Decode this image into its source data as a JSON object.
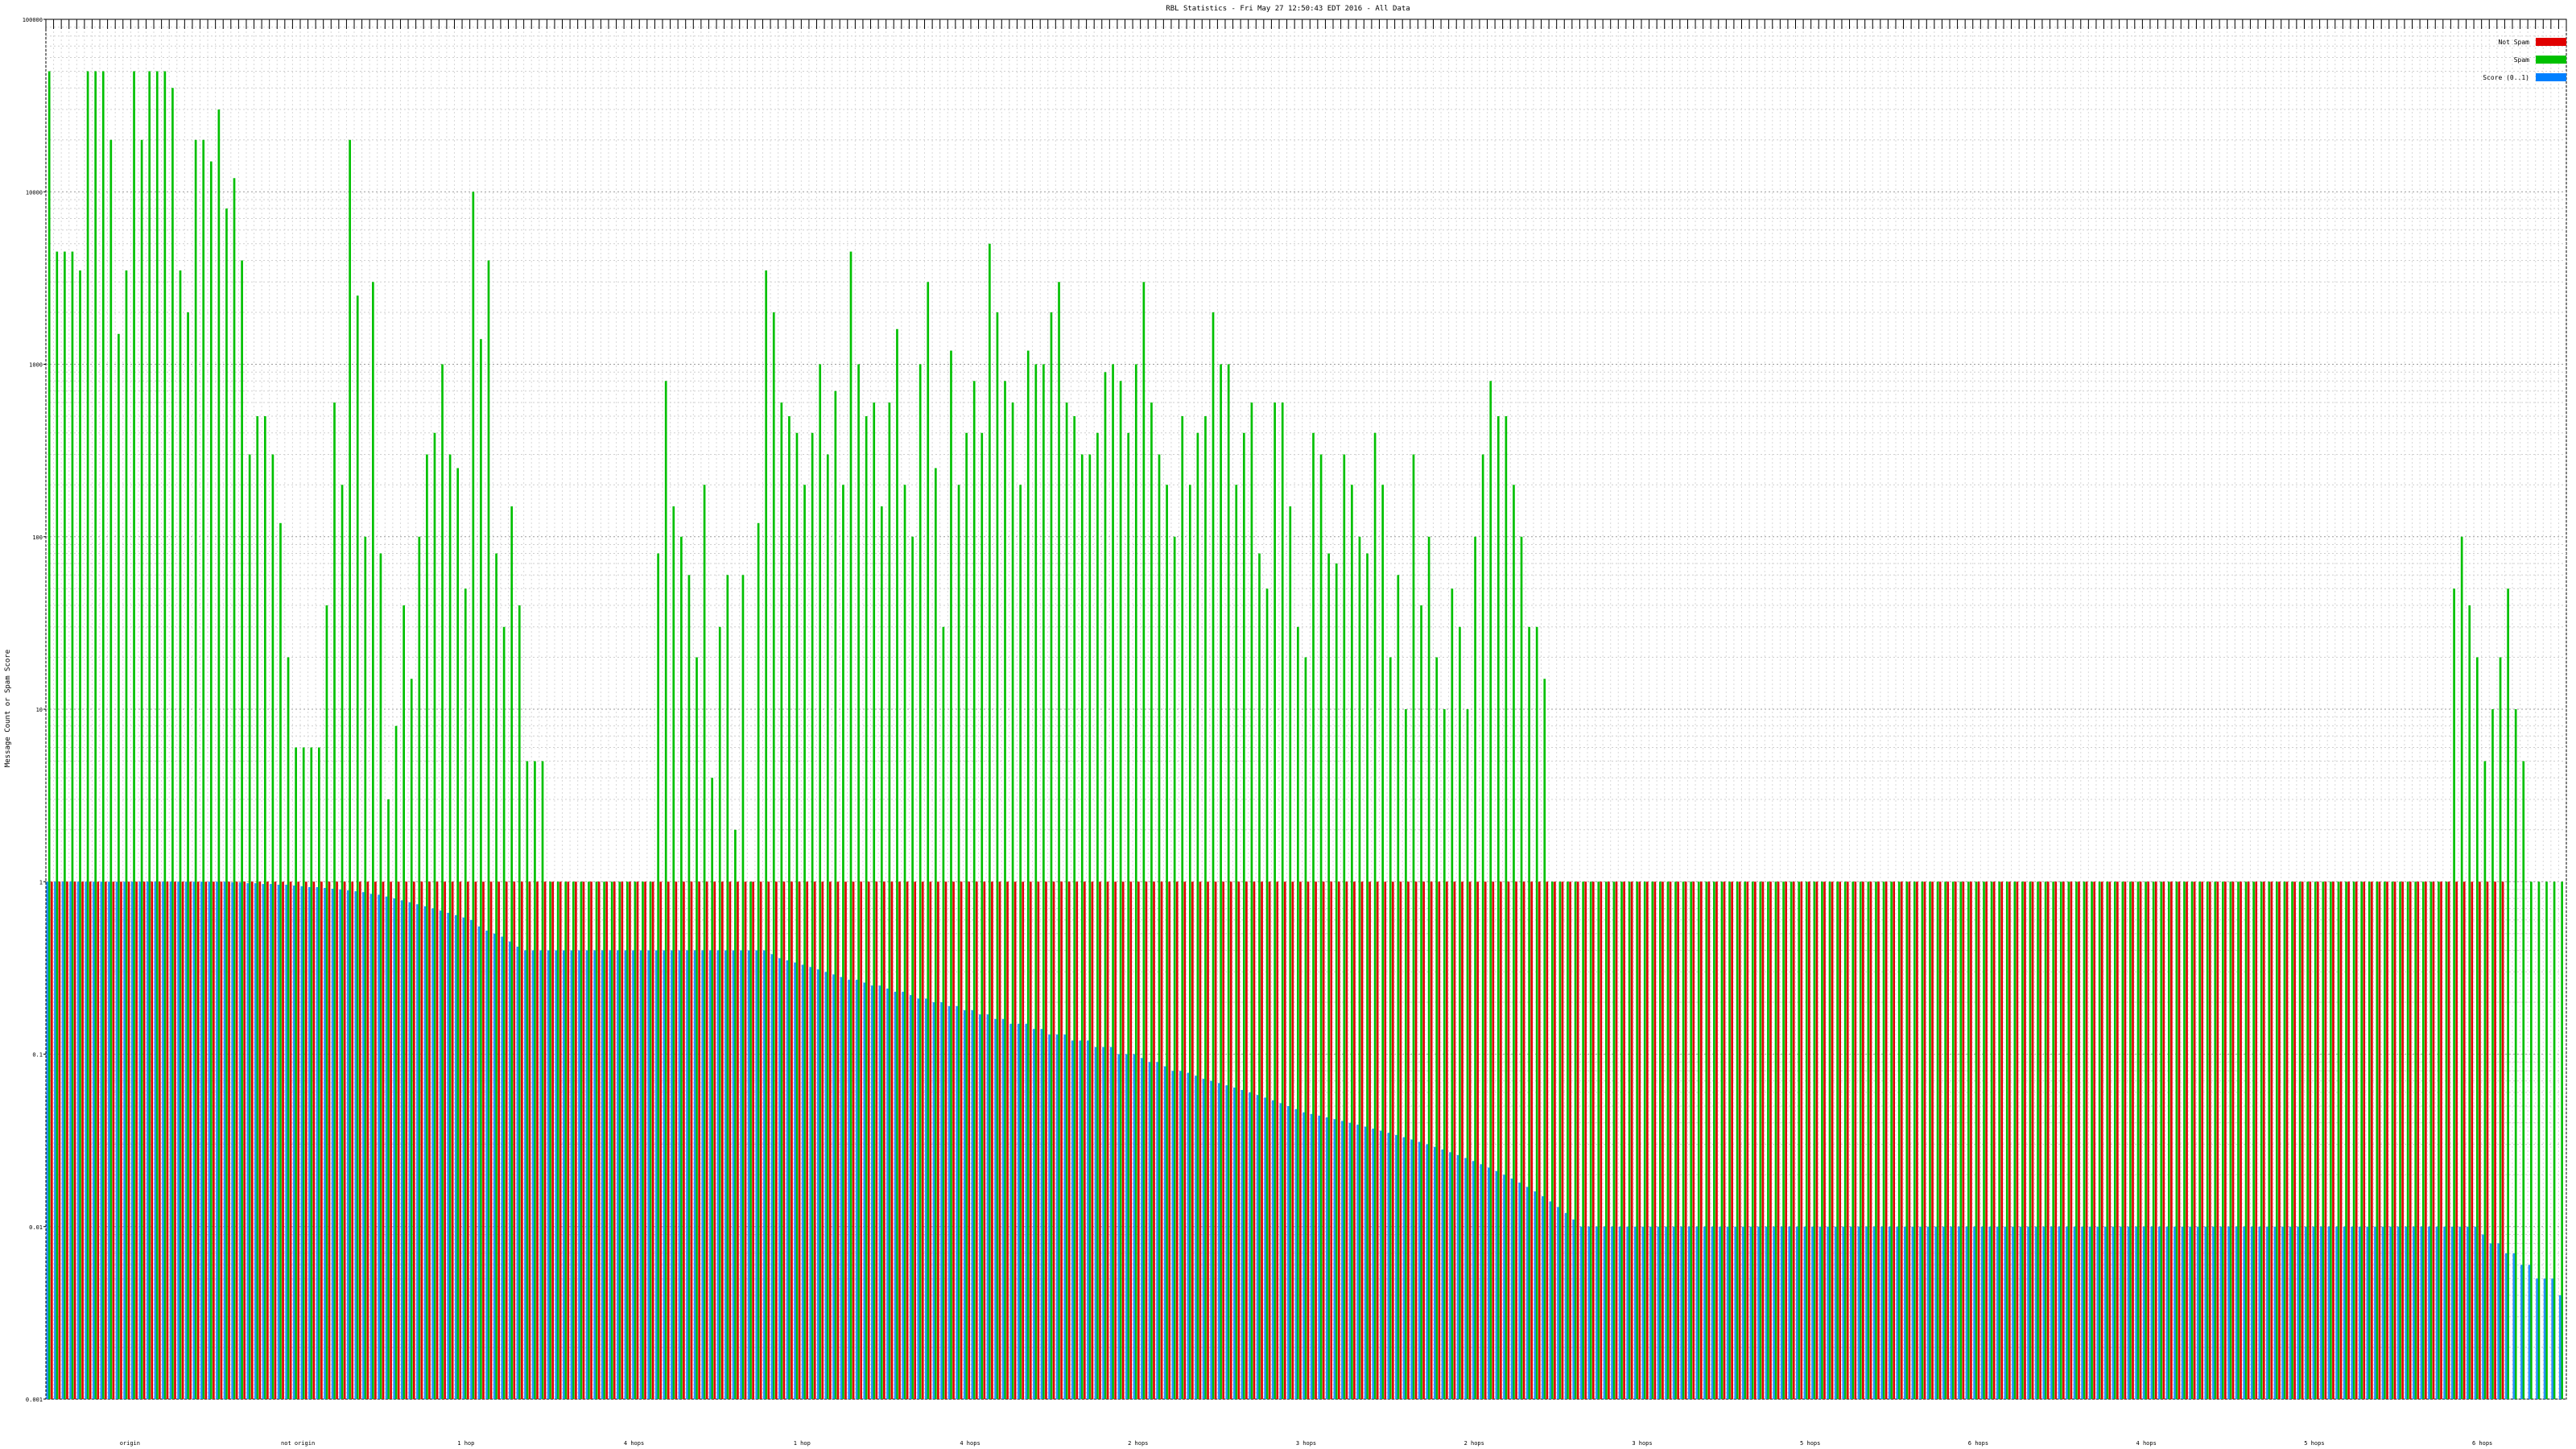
{
  "chart_data": {
    "type": "bar",
    "title": "RBL Statistics - Fri May 27 12:50:43 EDT 2016 - All Data",
    "ylabel": "Message Count or Spam Score",
    "xlabel": "",
    "y_scale": "log",
    "ylim": [
      0.001,
      100000
    ],
    "y_tick_labels": [
      "100000",
      "10000",
      "1000",
      "100",
      "10",
      "1",
      "0.1",
      "0.01",
      "0.001"
    ],
    "grid": true,
    "legend_position": "top-right",
    "series": [
      {
        "name": "Not Spam",
        "color": "#e00000"
      },
      {
        "name": "Spam",
        "color": "#00c000"
      },
      {
        "name": "Score (0..1)",
        "color": "#0080ff"
      }
    ],
    "x_group_labels": [
      "origin",
      "not origin",
      "1 hop",
      "4 hops",
      "1 hop",
      "4 hops",
      "2 hops",
      "3 hops",
      "2 hops",
      "3 hops",
      "5 hops",
      "6 hops",
      "4 hops",
      "5 hops",
      "6 hops"
    ],
    "spam_values": [
      50000,
      4500,
      4500,
      4500,
      3500,
      50000,
      50000,
      50000,
      20000,
      1500,
      3500,
      50000,
      20000,
      50000,
      50000,
      50000,
      40000,
      3500,
      2000,
      20000,
      20000,
      15000,
      30000,
      8000,
      12000,
      4000,
      300,
      500,
      500,
      300,
      120,
      20,
      6,
      6,
      6,
      6,
      40,
      600,
      200,
      20000,
      2500,
      100,
      3000,
      80,
      3,
      8,
      40,
      15,
      100,
      300,
      400,
      1000,
      300,
      250,
      50,
      10000,
      1400,
      4000,
      80,
      30,
      150,
      40,
      5,
      5,
      5,
      1,
      1,
      1,
      1,
      1,
      1,
      1,
      1,
      1,
      1,
      1,
      1,
      1,
      1,
      80,
      800,
      150,
      100,
      60,
      20,
      200,
      4,
      30,
      60,
      2,
      60,
      1,
      120,
      3500,
      2000,
      600,
      500,
      400,
      200,
      400,
      1000,
      300,
      700,
      200,
      4500,
      1000,
      500,
      600,
      150,
      600,
      1600,
      200,
      100,
      1000,
      3000,
      250,
      30,
      1200,
      200,
      400,
      800,
      400,
      5000,
      2000,
      800,
      600,
      200,
      1200,
      1000,
      1000,
      2000,
      3000,
      600,
      500,
      300,
      300,
      400,
      900,
      1000,
      800,
      400,
      1000,
      3000,
      600,
      300,
      200,
      100,
      500,
      200,
      400,
      500,
      2000,
      1000,
      1000,
      200,
      400,
      600,
      80,
      50,
      600,
      600,
      150,
      30,
      20,
      400,
      300,
      80,
      70,
      300,
      200,
      100,
      80,
      400,
      200,
      20,
      60,
      10,
      300,
      40,
      100,
      20,
      10,
      50,
      30,
      10,
      100,
      300,
      800,
      500,
      500,
      200,
      100,
      30,
      30,
      15,
      1,
      1,
      1,
      1,
      1,
      1,
      1,
      1,
      1,
      1,
      1,
      1,
      1,
      1,
      1,
      1,
      1,
      1,
      1,
      1,
      1,
      1,
      1,
      1,
      1,
      1,
      1,
      1,
      1,
      1,
      1,
      1,
      1,
      1,
      1,
      1,
      1,
      1,
      1,
      1,
      1,
      1,
      1,
      1,
      1,
      1,
      1,
      1,
      1,
      1,
      1,
      1,
      1,
      1,
      1,
      1,
      1,
      1,
      1,
      1,
      1,
      1,
      1,
      1,
      1,
      1,
      1,
      1,
      1,
      1,
      1,
      1,
      1,
      1,
      1,
      1,
      1,
      1,
      1,
      1,
      1,
      1,
      1,
      1,
      1,
      1,
      1,
      1,
      1,
      1,
      1,
      1,
      1,
      1,
      1,
      1,
      1,
      1,
      1,
      1,
      1,
      1,
      1,
      1,
      1,
      1,
      1,
      1,
      1,
      1,
      1,
      1,
      1,
      1,
      1,
      1,
      1,
      50,
      100,
      40,
      20,
      5,
      10,
      20,
      50,
      10,
      5,
      1,
      1,
      1,
      1,
      1
    ],
    "notspam_values": [
      1,
      1,
      1,
      1,
      1,
      1,
      1,
      1,
      1,
      1,
      1,
      1,
      1,
      1,
      1,
      1,
      1,
      1,
      1,
      1,
      1,
      1,
      1,
      1,
      1,
      1,
      1,
      1,
      1,
      1,
      1,
      1,
      1,
      1,
      1,
      1,
      1,
      1,
      1,
      1,
      1,
      1,
      1,
      1,
      1,
      1,
      1,
      1,
      1,
      1,
      1,
      1,
      1,
      1,
      1,
      1,
      1,
      1,
      1,
      1,
      1,
      1,
      1,
      1,
      1,
      1,
      1,
      1,
      1,
      1,
      1,
      1,
      1,
      1,
      1,
      1,
      1,
      1,
      1,
      1,
      1,
      1,
      1,
      1,
      1,
      1,
      1,
      1,
      1,
      1,
      1,
      1,
      1,
      1,
      1,
      1,
      1,
      1,
      1,
      1,
      1,
      1,
      1,
      1,
      1,
      1,
      1,
      1,
      1,
      1,
      1,
      1,
      1,
      1,
      1,
      1,
      1,
      1,
      1,
      1,
      1,
      1,
      1,
      1,
      1,
      1,
      1,
      1,
      1,
      1,
      1,
      1,
      1,
      1,
      1,
      1,
      1,
      1,
      1,
      1,
      1,
      1,
      1,
      1,
      1,
      1,
      1,
      1,
      1,
      1,
      1,
      1,
      1,
      1,
      1,
      1,
      1,
      1,
      1,
      1,
      1,
      1,
      1,
      1,
      1,
      1,
      1,
      1,
      1,
      1,
      1,
      1,
      1,
      1,
      1,
      1,
      1,
      1,
      1,
      1,
      1,
      1,
      1,
      1,
      1,
      1,
      1,
      1,
      1,
      1,
      1,
      1,
      1,
      1,
      1,
      1,
      1,
      1,
      1,
      1,
      1,
      1,
      1,
      1,
      1,
      1,
      1,
      1,
      1,
      1,
      1,
      1,
      1,
      1,
      1,
      1,
      1,
      1,
      1,
      1,
      1,
      1,
      1,
      1,
      1,
      1,
      1,
      1,
      1,
      1,
      1,
      1,
      1,
      1,
      1,
      1,
      1,
      1,
      1,
      1,
      1,
      1,
      1,
      1,
      1,
      1,
      1,
      1,
      1,
      1,
      1,
      1,
      1,
      1,
      1,
      1,
      1,
      1,
      1,
      1,
      1,
      1,
      1,
      1,
      1,
      1,
      1,
      1,
      1,
      1,
      1,
      1,
      1,
      1,
      1,
      1,
      1,
      1,
      1,
      1,
      1,
      1,
      1,
      1,
      1,
      1,
      1,
      1,
      1,
      1,
      1,
      1,
      1,
      1,
      1,
      1,
      1,
      1,
      1,
      1,
      1,
      1,
      1,
      1,
      1,
      1,
      1,
      1,
      1,
      1,
      1,
      1,
      1,
      1,
      1,
      1,
      1,
      1,
      1
    ],
    "score_values": [
      1,
      1,
      1,
      1,
      1,
      1,
      1,
      1,
      1,
      1,
      1,
      1,
      1,
      1,
      1,
      1,
      1,
      1,
      1,
      1,
      1,
      1,
      1,
      1,
      0.99,
      0.99,
      0.98,
      0.98,
      0.97,
      0.97,
      0.96,
      0.96,
      0.95,
      0.94,
      0.93,
      0.93,
      0.92,
      0.91,
      0.9,
      0.89,
      0.88,
      0.87,
      0.85,
      0.84,
      0.82,
      0.8,
      0.78,
      0.76,
      0.74,
      0.72,
      0.7,
      0.68,
      0.66,
      0.64,
      0.62,
      0.6,
      0.55,
      0.52,
      0.5,
      0.48,
      0.45,
      0.42,
      0.4,
      0.4,
      0.4,
      0.4,
      0.4,
      0.4,
      0.4,
      0.4,
      0.4,
      0.4,
      0.4,
      0.4,
      0.4,
      0.4,
      0.4,
      0.4,
      0.4,
      0.4,
      0.4,
      0.4,
      0.4,
      0.4,
      0.4,
      0.4,
      0.4,
      0.4,
      0.4,
      0.4,
      0.4,
      0.4,
      0.4,
      0.4,
      0.38,
      0.36,
      0.35,
      0.34,
      0.33,
      0.32,
      0.31,
      0.3,
      0.29,
      0.28,
      0.27,
      0.27,
      0.26,
      0.25,
      0.25,
      0.24,
      0.23,
      0.23,
      0.22,
      0.21,
      0.21,
      0.2,
      0.2,
      0.19,
      0.19,
      0.18,
      0.18,
      0.17,
      0.17,
      0.16,
      0.16,
      0.15,
      0.15,
      0.15,
      0.14,
      0.14,
      0.13,
      0.13,
      0.13,
      0.12,
      0.12,
      0.12,
      0.11,
      0.11,
      0.11,
      0.1,
      0.1,
      0.1,
      0.095,
      0.09,
      0.09,
      0.085,
      0.08,
      0.08,
      0.078,
      0.075,
      0.072,
      0.07,
      0.068,
      0.066,
      0.064,
      0.062,
      0.06,
      0.058,
      0.056,
      0.054,
      0.052,
      0.05,
      0.048,
      0.046,
      0.045,
      0.044,
      0.043,
      0.042,
      0.041,
      0.04,
      0.039,
      0.038,
      0.037,
      0.036,
      0.035,
      0.034,
      0.033,
      0.032,
      0.031,
      0.03,
      0.029,
      0.028,
      0.027,
      0.026,
      0.025,
      0.024,
      0.023,
      0.022,
      0.021,
      0.02,
      0.019,
      0.018,
      0.017,
      0.016,
      0.015,
      0.014,
      0.013,
      0.012,
      0.011,
      0.01,
      0.01,
      0.01,
      0.01,
      0.01,
      0.01,
      0.01,
      0.01,
      0.01,
      0.01,
      0.01,
      0.01,
      0.01,
      0.01,
      0.01,
      0.01,
      0.01,
      0.01,
      0.01,
      0.01,
      0.01,
      0.01,
      0.01,
      0.01,
      0.01,
      0.01,
      0.01,
      0.01,
      0.01,
      0.01,
      0.01,
      0.01,
      0.01,
      0.01,
      0.01,
      0.01,
      0.01,
      0.01,
      0.01,
      0.01,
      0.01,
      0.01,
      0.01,
      0.01,
      0.01,
      0.01,
      0.01,
      0.01,
      0.01,
      0.01,
      0.01,
      0.01,
      0.01,
      0.01,
      0.01,
      0.01,
      0.01,
      0.01,
      0.01,
      0.01,
      0.01,
      0.01,
      0.01,
      0.01,
      0.01,
      0.01,
      0.01,
      0.01,
      0.01,
      0.01,
      0.01,
      0.01,
      0.01,
      0.01,
      0.01,
      0.01,
      0.01,
      0.01,
      0.01,
      0.01,
      0.01,
      0.01,
      0.01,
      0.01,
      0.01,
      0.01,
      0.01,
      0.01,
      0.01,
      0.01,
      0.01,
      0.01,
      0.01,
      0.01,
      0.01,
      0.01,
      0.01,
      0.01,
      0.01,
      0.01,
      0.01,
      0.01,
      0.01,
      0.01,
      0.01,
      0.01,
      0.01,
      0.01,
      0.01,
      0.01,
      0.01,
      0.01,
      0.01,
      0.01,
      0.01,
      0.01,
      0.01,
      0.009,
      0.008,
      0.008,
      0.007,
      0.007,
      0.006,
      0.006,
      0.005,
      0.005,
      0.005,
      0.004,
      0.004,
      0.004,
      0.003,
      0.003,
      0.003,
      0.002,
      0.002,
      0.0015
    ]
  }
}
